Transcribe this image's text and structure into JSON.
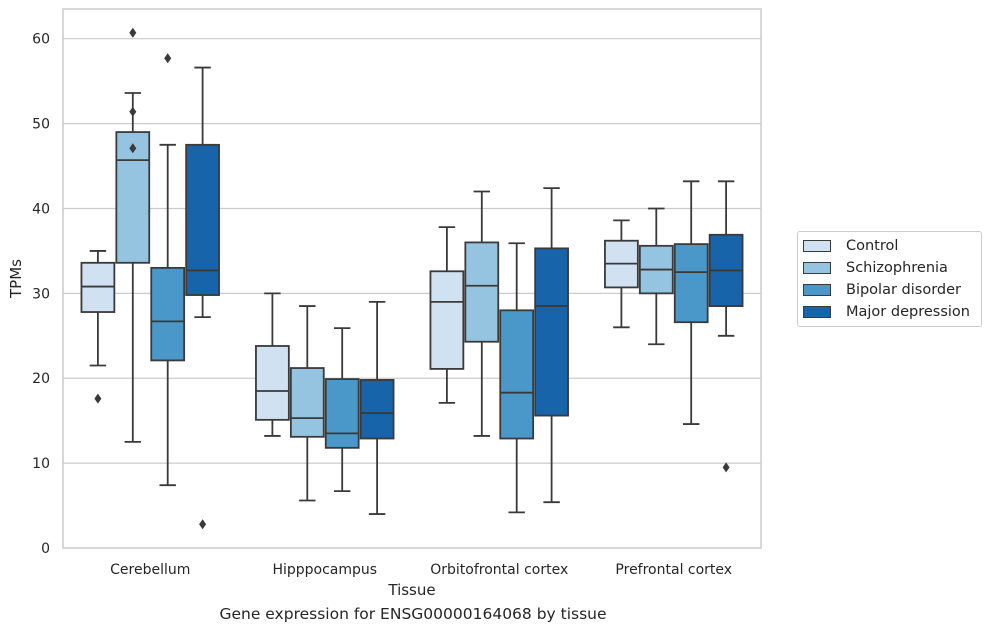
{
  "chart_data": {
    "type": "box",
    "title": "Gene expression for ENSG00000164068 by tissue",
    "xlabel": "Tissue",
    "ylabel": "TPMs",
    "ylim": [
      0,
      63.5
    ],
    "yticks": [
      0,
      10,
      20,
      30,
      40,
      50,
      60
    ],
    "grid": true,
    "legend_position": "right",
    "categories": [
      "Cerebellum",
      "Hipppocampus",
      "Orbitofrontal cortex",
      "Prefrontal cortex"
    ],
    "series": [
      {
        "name": "Control",
        "color": "#d0e1f2",
        "boxes": [
          {
            "whisker_low": 21.5,
            "q1": 27.8,
            "median": 30.8,
            "q3": 33.6,
            "whisker_high": 35.0,
            "outliers": [
              17.6
            ]
          },
          {
            "whisker_low": 13.2,
            "q1": 15.1,
            "median": 18.5,
            "q3": 23.8,
            "whisker_high": 30.0,
            "outliers": []
          },
          {
            "whisker_low": 17.1,
            "q1": 21.1,
            "median": 29.0,
            "q3": 32.6,
            "whisker_high": 37.8,
            "outliers": []
          },
          {
            "whisker_low": 26.0,
            "q1": 30.7,
            "median": 33.5,
            "q3": 36.2,
            "whisker_high": 38.6,
            "outliers": []
          }
        ]
      },
      {
        "name": "Schizophrenia",
        "color": "#94c4df",
        "boxes": [
          {
            "whisker_low": 12.5,
            "q1": 33.6,
            "median": 45.7,
            "q3": 49.0,
            "whisker_high": 53.6,
            "outliers": [
              47.1,
              51.4,
              60.7
            ]
          },
          {
            "whisker_low": 5.6,
            "q1": 13.1,
            "median": 15.3,
            "q3": 21.2,
            "whisker_high": 28.5,
            "outliers": []
          },
          {
            "whisker_low": 13.2,
            "q1": 24.3,
            "median": 30.9,
            "q3": 36.0,
            "whisker_high": 42.0,
            "outliers": []
          },
          {
            "whisker_low": 24.0,
            "q1": 30.0,
            "median": 32.8,
            "q3": 35.6,
            "whisker_high": 40.0,
            "outliers": []
          }
        ]
      },
      {
        "name": "Bipolar disorder",
        "color": "#4a98c9",
        "boxes": [
          {
            "whisker_low": 7.4,
            "q1": 22.1,
            "median": 26.7,
            "q3": 33.0,
            "whisker_high": 47.5,
            "outliers": [
              57.7
            ]
          },
          {
            "whisker_low": 6.7,
            "q1": 11.8,
            "median": 13.5,
            "q3": 19.9,
            "whisker_high": 25.9,
            "outliers": []
          },
          {
            "whisker_low": 4.2,
            "q1": 12.9,
            "median": 18.3,
            "q3": 28.0,
            "whisker_high": 35.9,
            "outliers": []
          },
          {
            "whisker_low": 14.6,
            "q1": 26.6,
            "median": 32.5,
            "q3": 35.8,
            "whisker_high": 43.2,
            "outliers": []
          }
        ]
      },
      {
        "name": "Major depression",
        "color": "#1764ab",
        "boxes": [
          {
            "whisker_low": 27.2,
            "q1": 29.8,
            "median": 32.7,
            "q3": 47.5,
            "whisker_high": 56.6,
            "outliers": [
              2.8
            ]
          },
          {
            "whisker_low": 4.0,
            "q1": 12.9,
            "median": 15.9,
            "q3": 19.8,
            "whisker_high": 29.0,
            "outliers": []
          },
          {
            "whisker_low": 5.4,
            "q1": 15.6,
            "median": 28.5,
            "q3": 35.3,
            "whisker_high": 42.4,
            "outliers": []
          },
          {
            "whisker_low": 25.0,
            "q1": 28.5,
            "median": 32.7,
            "q3": 36.9,
            "whisker_high": 43.2,
            "outliers": [
              9.5
            ]
          }
        ]
      }
    ]
  }
}
